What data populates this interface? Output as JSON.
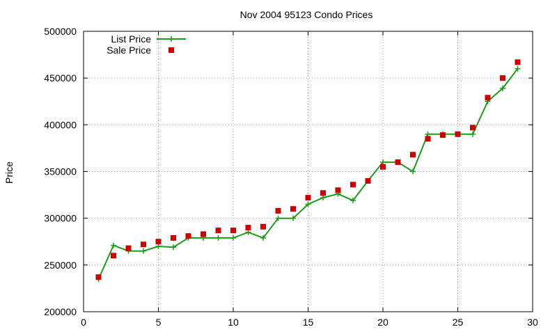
{
  "chart_data": {
    "type": "line",
    "title": "Nov 2004 95123 Condo Prices",
    "xlabel": "",
    "ylabel": "Price",
    "xlim": [
      0,
      30
    ],
    "ylim": [
      200000,
      500000
    ],
    "xticks": [
      0,
      5,
      10,
      15,
      20,
      25,
      30
    ],
    "yticks": [
      200000,
      250000,
      300000,
      350000,
      400000,
      450000,
      500000
    ],
    "grid": true,
    "legend_position": "top-left",
    "series": [
      {
        "name": "List Price",
        "style": "linespoints",
        "marker": "plus",
        "color": "#1a9e1a",
        "x": [
          1,
          2,
          3,
          4,
          5,
          6,
          7,
          8,
          9,
          10,
          11,
          12,
          13,
          14,
          15,
          16,
          17,
          18,
          19,
          20,
          21,
          22,
          23,
          24,
          25,
          26,
          27,
          28,
          29
        ],
        "y": [
          235000,
          271000,
          265000,
          265000,
          270000,
          269000,
          279000,
          279000,
          279000,
          279000,
          285000,
          279000,
          300000,
          300000,
          315000,
          322000,
          326000,
          319000,
          340000,
          360000,
          360000,
          350000,
          390000,
          390000,
          390000,
          390000,
          425000,
          439000,
          460000
        ]
      },
      {
        "name": "Sale Price",
        "style": "points",
        "marker": "square",
        "color": "#cc0000",
        "x": [
          1,
          2,
          3,
          4,
          5,
          6,
          7,
          8,
          9,
          10,
          11,
          12,
          13,
          14,
          15,
          16,
          17,
          18,
          19,
          20,
          21,
          22,
          23,
          24,
          25,
          26,
          27,
          28,
          29
        ],
        "y": [
          237000,
          260000,
          268000,
          272000,
          275000,
          279000,
          281000,
          283000,
          287000,
          287000,
          290000,
          291000,
          308000,
          310000,
          322000,
          327000,
          330000,
          336000,
          340000,
          355000,
          360000,
          368000,
          385000,
          389000,
          390000,
          397000,
          429000,
          450000,
          467000
        ]
      }
    ]
  }
}
